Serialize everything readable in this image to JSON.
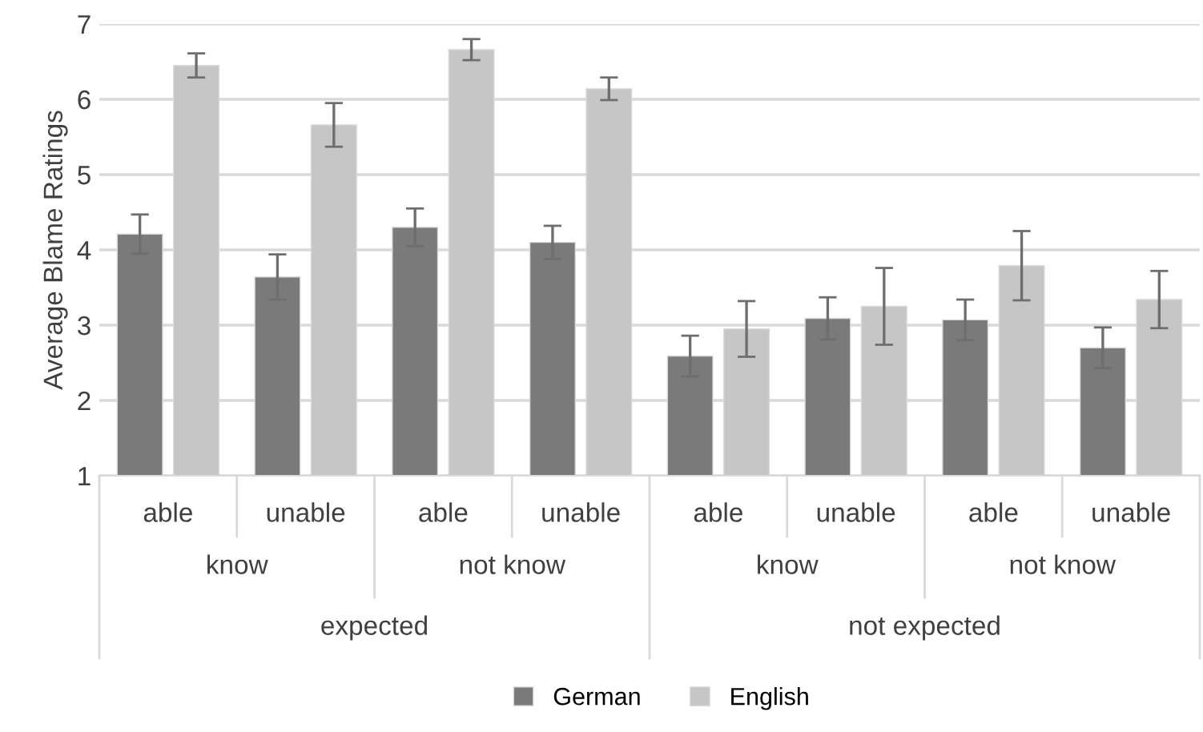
{
  "chart_data": {
    "type": "bar",
    "ylabel": "Average Blame Ratings",
    "categories": [
      "able",
      "unable",
      "able",
      "unable",
      "able",
      "unable",
      "able",
      "unable"
    ],
    "annotations": [
      "know",
      "not know",
      "know",
      "not know",
      "expected",
      "not expected"
    ],
    "series": [
      {
        "name": "German",
        "color": "#7a7a7a",
        "values": [
          4.21,
          3.64,
          4.3,
          4.1,
          2.59,
          3.09,
          3.07,
          2.7
        ],
        "errors": [
          0.26,
          0.3,
          0.25,
          0.22,
          0.27,
          0.28,
          0.27,
          0.27
        ]
      },
      {
        "name": "English",
        "color": "#c5c6c5",
        "values": [
          6.45,
          5.66,
          6.66,
          6.14,
          2.95,
          3.25,
          3.79,
          3.34
        ],
        "errors": [
          0.16,
          0.29,
          0.14,
          0.15,
          0.37,
          0.51,
          0.46,
          0.38
        ]
      }
    ],
    "ylim": [
      1,
      7
    ],
    "yticks": [
      1,
      2,
      3,
      4,
      5,
      6,
      7
    ],
    "grid": "y",
    "legend": "bottom"
  }
}
